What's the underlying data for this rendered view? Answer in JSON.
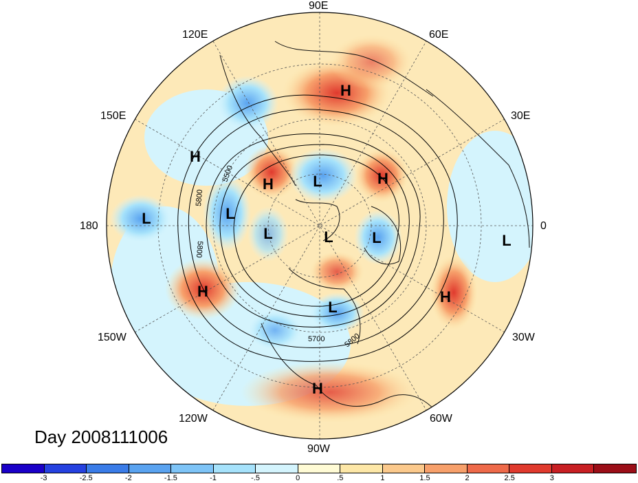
{
  "title": "Day 2008111006",
  "lon_labels": {
    "e90": "90E",
    "e120": "120E",
    "e60": "60E",
    "e150": "150E",
    "e30": "30E",
    "w180": "180",
    "zero": "0",
    "w150": "150W",
    "w30": "30W",
    "w120": "120W",
    "w60": "60W",
    "w90": "90W"
  },
  "colorbar": {
    "colors": [
      "#1a00c8",
      "#2541e0",
      "#3a7ce8",
      "#5aa3f0",
      "#7ec4f7",
      "#a6e2fb",
      "#d4f4fd",
      "#fffbd5",
      "#fde7a7",
      "#fbc98c",
      "#f7a06b",
      "#ee6a4a",
      "#e03a2e",
      "#c81f23",
      "#9b0e17"
    ],
    "tick_labels": [
      "-3",
      "-2.5",
      "-2",
      "-1.5",
      "-1",
      "-.5",
      "0",
      ".5",
      "1",
      "1.5",
      "2",
      "2.5",
      "3"
    ]
  },
  "contour_labels": {
    "c1": "5500",
    "c2": "5800",
    "c3": "5800",
    "c4": "5700",
    "c5": "5800"
  },
  "pressure_centers": [
    {
      "label": "H",
      "name": "high-siberia"
    },
    {
      "label": "H",
      "name": "high-west-pacific"
    },
    {
      "label": "L",
      "name": "low-east-siberia"
    },
    {
      "label": "H",
      "name": "high-kamchatka"
    },
    {
      "label": "H",
      "name": "high-europe"
    },
    {
      "label": "L",
      "name": "low-pacific-180"
    },
    {
      "label": "L",
      "name": "low-alaska"
    },
    {
      "label": "L",
      "name": "low-canada"
    },
    {
      "label": "L",
      "name": "low-pole"
    },
    {
      "label": "L",
      "name": "low-greenland"
    },
    {
      "label": "L",
      "name": "low-atlantic-0"
    },
    {
      "label": "H",
      "name": "high-northeast-pacific"
    },
    {
      "label": "L",
      "name": "low-hudson"
    },
    {
      "label": "H",
      "name": "high-mid-atlantic"
    },
    {
      "label": "H",
      "name": "high-mexico"
    }
  ]
}
